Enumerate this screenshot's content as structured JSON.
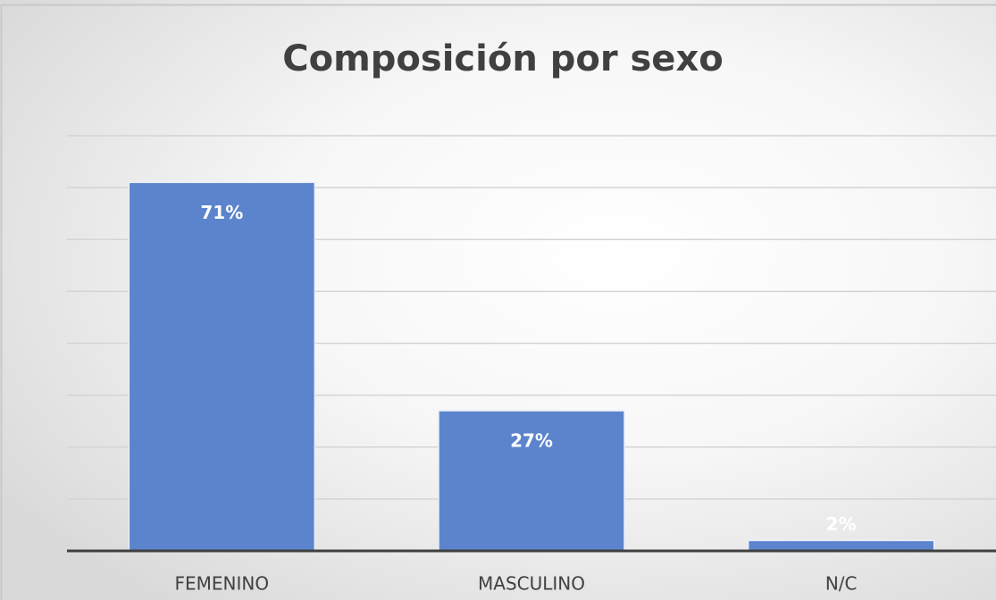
{
  "chart_data": {
    "type": "bar",
    "title": "Composición por sexo",
    "categories": [
      "FEMENINO",
      "MASCULINO",
      "N/C"
    ],
    "values": [
      71,
      27,
      2
    ],
    "value_labels": [
      "71%",
      "27%",
      "2%"
    ],
    "color": "#5b84cc",
    "ylim": [
      0,
      80
    ],
    "yticks": [
      0,
      10,
      20,
      30,
      40,
      50,
      60,
      70,
      80
    ],
    "grid": true
  }
}
